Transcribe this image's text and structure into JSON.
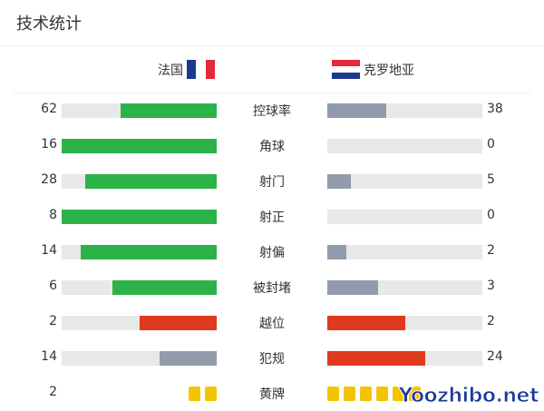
{
  "title": "技术统计",
  "home": {
    "name": "法国",
    "flag_colors": [
      "#1b3a8c",
      "#ffffff",
      "#e5283a"
    ]
  },
  "away": {
    "name": "克罗地亚",
    "flag_colors": [
      "#e5283a",
      "#ffffff",
      "#1b3a8c"
    ]
  },
  "colors": {
    "green": "#2db24a",
    "gray": "#919bab",
    "red": "#e03a1e",
    "track": "#e8e8e8",
    "yellow": "#f5c400"
  },
  "stats": [
    {
      "label": "控球率",
      "home": "62",
      "away": "38",
      "home_frac": 0.62,
      "away_frac": 0.38,
      "home_color": "#2db24a",
      "away_color": "#919bab"
    },
    {
      "label": "角球",
      "home": "16",
      "away": "0",
      "home_frac": 1,
      "away_frac": 0,
      "home_color": "#2db24a",
      "away_color": "#919bab"
    },
    {
      "label": "射门",
      "home": "28",
      "away": "5",
      "home_frac": 0.85,
      "away_frac": 0.15,
      "home_color": "#2db24a",
      "away_color": "#919bab"
    },
    {
      "label": "射正",
      "home": "8",
      "away": "0",
      "home_frac": 1,
      "away_frac": 0,
      "home_color": "#2db24a",
      "away_color": "#919bab"
    },
    {
      "label": "射偏",
      "home": "14",
      "away": "2",
      "home_frac": 0.875,
      "away_frac": 0.125,
      "home_color": "#2db24a",
      "away_color": "#919bab"
    },
    {
      "label": "被封堵",
      "home": "6",
      "away": "3",
      "home_frac": 0.67,
      "away_frac": 0.33,
      "home_color": "#2db24a",
      "away_color": "#919bab"
    },
    {
      "label": "越位",
      "home": "2",
      "away": "2",
      "home_frac": 0.5,
      "away_frac": 0.5,
      "home_color": "#e03a1e",
      "away_color": "#e03a1e"
    },
    {
      "label": "犯规",
      "home": "14",
      "away": "24",
      "home_frac": 0.37,
      "away_frac": 0.63,
      "home_color": "#919bab",
      "away_color": "#e03a1e"
    }
  ],
  "yellow": {
    "label": "黄牌",
    "home": "2",
    "home_cards": 2,
    "away_cards": 6
  },
  "watermark": "Yoozhibo.net"
}
